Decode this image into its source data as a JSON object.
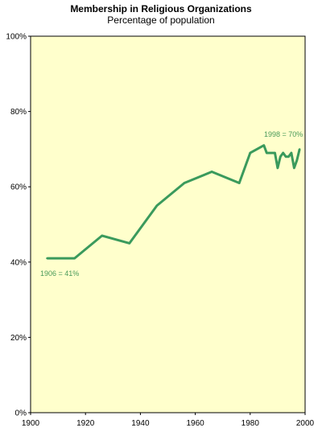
{
  "chart_data": {
    "type": "line",
    "title": "Membership in Religious Organizations",
    "subtitle": "Percentage of population",
    "xlabel": "",
    "ylabel": "",
    "xlim": [
      1900,
      2000
    ],
    "ylim": [
      0,
      100
    ],
    "x_ticks": [
      1900,
      1920,
      1940,
      1960,
      1980,
      2000
    ],
    "y_ticks": [
      0,
      20,
      40,
      60,
      80,
      100
    ],
    "y_tick_labels": [
      "0%",
      "20%",
      "40%",
      "60%",
      "80%",
      "100%"
    ],
    "grid": false,
    "colors": {
      "background": "#ffffcc",
      "line": "#3a9a5c",
      "annotation": "#4a9a5a"
    },
    "series": [
      {
        "x": [
          1906,
          1916,
          1926,
          1936,
          1946,
          1956,
          1966,
          1976,
          1980,
          1985,
          1986,
          1989,
          1990,
          1991,
          1992,
          1993,
          1994,
          1995,
          1996,
          1997,
          1998
        ],
        "values": [
          41,
          41,
          47,
          45,
          55,
          61,
          64,
          61,
          69,
          71,
          69,
          69,
          65,
          68,
          69,
          68,
          68,
          69,
          65,
          67,
          70
        ]
      }
    ],
    "annotations": [
      {
        "text": "1906 = 41%"
      },
      {
        "text": "1998 = 70%"
      }
    ]
  }
}
